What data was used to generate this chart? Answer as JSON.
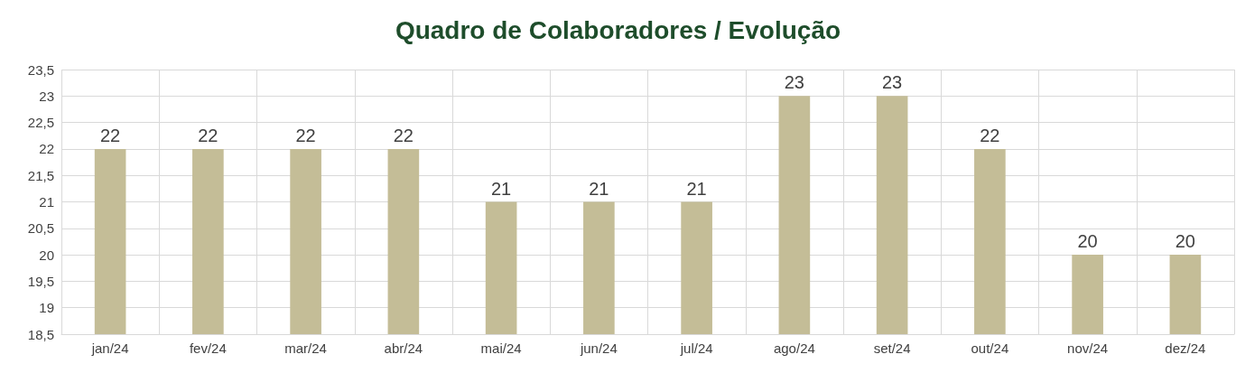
{
  "chart_data": {
    "type": "bar",
    "title": "Quadro de Colaboradores / Evolução",
    "categories": [
      "jan/24",
      "fev/24",
      "mar/24",
      "abr/24",
      "mai/24",
      "jun/24",
      "jul/24",
      "ago/24",
      "set/24",
      "out/24",
      "nov/24",
      "dez/24"
    ],
    "values": [
      22,
      22,
      22,
      22,
      21,
      21,
      21,
      23,
      23,
      22,
      20,
      20
    ],
    "color": "#c4bd97",
    "ylim": [
      18.5,
      23.5
    ],
    "yticks": [
      {
        "value": 18.5,
        "label": "18,5"
      },
      19,
      {
        "value": 19.5,
        "label": "19,5"
      },
      20,
      {
        "value": 20.5,
        "label": "20,5"
      },
      21,
      {
        "value": 21.5,
        "label": "21,5"
      },
      22,
      {
        "value": 22.5,
        "label": "22,5"
      },
      23,
      {
        "value": 23.5,
        "label": "23,5"
      }
    ],
    "grid": true,
    "data_labels": true
  }
}
